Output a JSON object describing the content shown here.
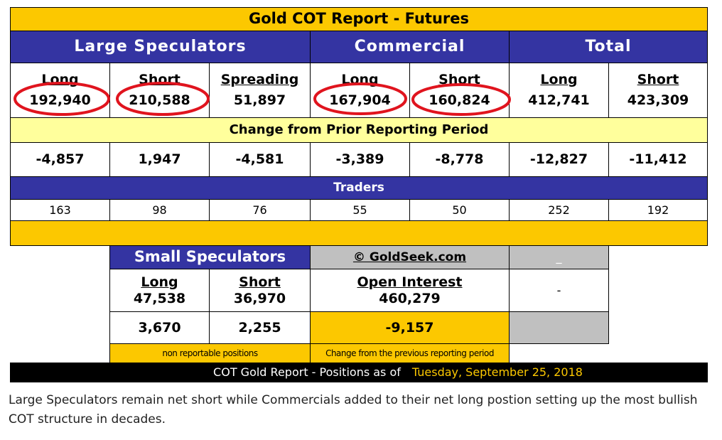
{
  "title": "Gold COT Report - Futures",
  "groups": [
    "Large Speculators",
    "Commercial",
    "Total"
  ],
  "columns": [
    "Long",
    "Short",
    "Spreading",
    "Long",
    "Short",
    "Long",
    "Short"
  ],
  "positions": [
    "192,940",
    "210,588",
    "51,897",
    "167,904",
    "160,824",
    "412,741",
    "423,309"
  ],
  "change_title": "Change from Prior Reporting Period",
  "changes": [
    "-4,857",
    "1,947",
    "-4,581",
    "-3,389",
    "-8,778",
    "-12,827",
    "-11,412"
  ],
  "traders_title": "Traders",
  "traders": [
    "163",
    "98",
    "76",
    "55",
    "50",
    "252",
    "192"
  ],
  "small": {
    "title": "Small Speculators",
    "columns": [
      "Long",
      "Short"
    ],
    "positions": [
      "47,538",
      "36,970"
    ],
    "changes": [
      "3,670",
      "2,255"
    ],
    "note": "non reportable positions"
  },
  "source": "© GoldSeek.com",
  "open_interest": {
    "label": "Open Interest",
    "value": "460,279",
    "change": "-9,157",
    "note": "Change from the previous reporting period"
  },
  "side_marks": [
    "_",
    "-"
  ],
  "footer": {
    "label": "COT Gold Report - Positions as of",
    "date": "Tuesday, September 25, 2018"
  },
  "caption": "Large Speculators remain net short while Commercials added to their net long postion setting up the most bullish COT structure in decades."
}
